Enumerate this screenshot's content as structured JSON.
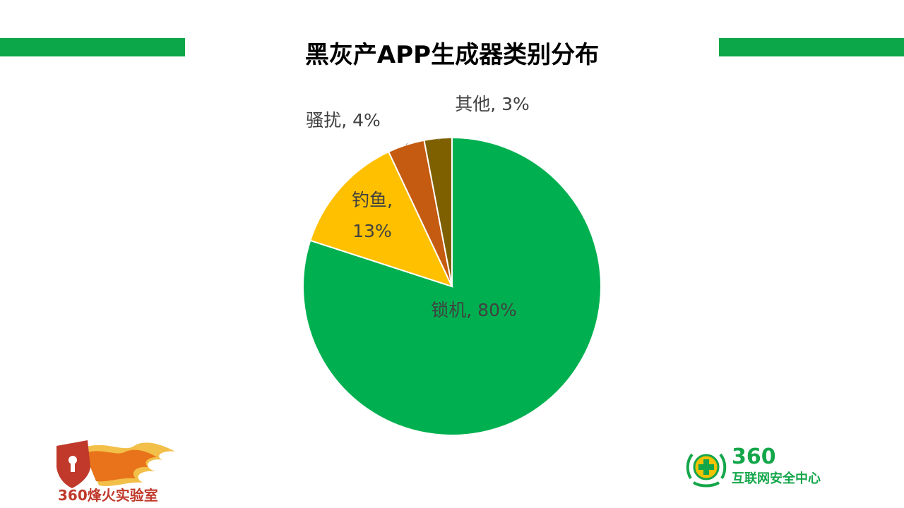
{
  "slide": {
    "title": "黑灰产APP生成器类别分布"
  },
  "colors": {
    "accent_bar": "#0ba748",
    "slice_lock": "#00b050",
    "slice_phishing": "#ffc000",
    "slice_harass": "#c55a11",
    "slice_other": "#7f6000",
    "label_text": "#404040"
  },
  "chart_data": {
    "type": "pie",
    "title": "黑灰产APP生成器类别分布",
    "slices": [
      {
        "name": "锁机",
        "value": 80,
        "label": "锁机, 80%",
        "color": "#00b050"
      },
      {
        "name": "钓鱼",
        "value": 13,
        "label": "钓鱼, 13%",
        "color": "#ffc000"
      },
      {
        "name": "骚扰",
        "value": 4,
        "label": "骚扰, 4%",
        "color": "#c55a11"
      },
      {
        "name": "其他",
        "value": 3,
        "label": "其他, 3%",
        "color": "#7f6000"
      }
    ],
    "start": "12 o'clock",
    "direction": "clockwise",
    "legend": "none",
    "data_labels": "category name and percentage"
  },
  "logos": {
    "left_text": "360烽火实验室",
    "right_brand": "360",
    "right_text": "互联网安全中心"
  }
}
